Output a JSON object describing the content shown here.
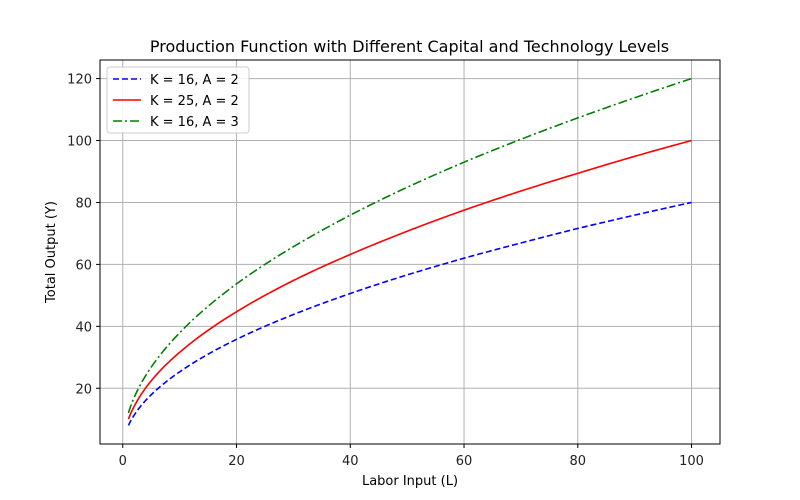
{
  "chart_data": {
    "type": "line",
    "title": "Production Function with Different Capital and Technology Levels",
    "xlabel": "Labor Input (L)",
    "ylabel": "Total Output (Y)",
    "xlim": [
      -4,
      105
    ],
    "ylim": [
      2,
      126
    ],
    "xticks": [
      0,
      20,
      40,
      60,
      80,
      100
    ],
    "yticks": [
      20,
      40,
      60,
      80,
      100,
      120
    ],
    "grid": true,
    "legend_position": "top-left",
    "series": [
      {
        "name": "K = 16, A = 2",
        "color": "#0000ff",
        "dash": "dashed",
        "x": [
          1,
          2,
          5,
          10,
          20,
          30,
          40,
          50,
          60,
          70,
          80,
          90,
          100
        ],
        "y": [
          8.0,
          11.3,
          17.9,
          25.3,
          35.8,
          43.8,
          50.6,
          56.6,
          62.0,
          66.9,
          71.6,
          75.9,
          80.0
        ]
      },
      {
        "name": "K = 25, A = 2",
        "color": "#ff0000",
        "dash": "solid",
        "x": [
          1,
          2,
          5,
          10,
          20,
          30,
          40,
          50,
          60,
          70,
          80,
          90,
          100
        ],
        "y": [
          10.0,
          14.1,
          22.4,
          31.6,
          44.7,
          54.8,
          63.2,
          70.7,
          77.5,
          83.7,
          89.4,
          94.9,
          100.0
        ]
      },
      {
        "name": "K = 16, A = 3",
        "color": "#008000",
        "dash": "dashdot",
        "x": [
          1,
          2,
          5,
          10,
          20,
          30,
          40,
          50,
          60,
          70,
          80,
          90,
          100
        ],
        "y": [
          12.0,
          17.0,
          26.8,
          37.9,
          53.7,
          65.7,
          75.9,
          84.9,
          93.0,
          100.4,
          107.3,
          113.8,
          120.0
        ]
      }
    ]
  }
}
